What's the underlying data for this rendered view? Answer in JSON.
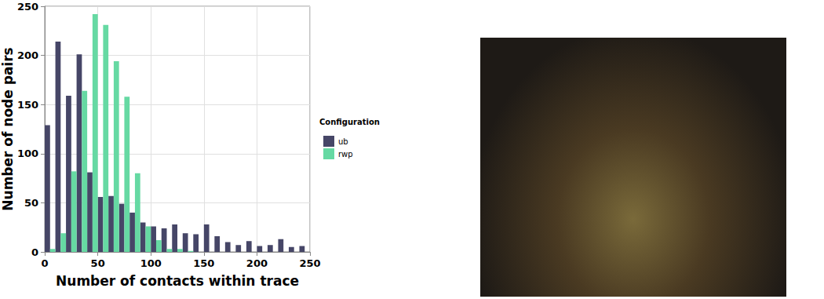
{
  "chart_data": {
    "type": "histogram",
    "xlabel": "Number of contacts within trace",
    "ylabel": "Number of node pairs",
    "legend_title": "Configuration",
    "bins": [
      0,
      10,
      20,
      30,
      40,
      50,
      60,
      70,
      80,
      90,
      100,
      110,
      120,
      130,
      140,
      150,
      160,
      170,
      180,
      190,
      200,
      210,
      220,
      230,
      240,
      250
    ],
    "series": [
      {
        "name": "ub",
        "color": "#464667",
        "values": [
          129,
          214,
          159,
          201,
          81,
          56,
          57,
          49,
          40,
          30,
          26,
          24,
          28,
          19,
          18,
          28,
          16,
          10,
          7,
          11,
          6,
          7,
          13,
          5,
          6
        ]
      },
      {
        "name": "rwp",
        "color": "#66d9a3",
        "values": [
          3,
          19,
          82,
          164,
          242,
          231,
          194,
          158,
          80,
          26,
          12,
          3,
          3,
          1,
          0,
          0,
          0,
          0,
          0,
          0,
          0,
          0,
          0,
          0,
          0
        ]
      }
    ],
    "xlim": [
      0,
      250
    ],
    "xticks": [
      0,
      50,
      100,
      150,
      200,
      250
    ],
    "ylim": [
      0,
      250
    ],
    "yticks": [
      0,
      50,
      100,
      150,
      200,
      250
    ],
    "grid": true,
    "legend": "right"
  }
}
